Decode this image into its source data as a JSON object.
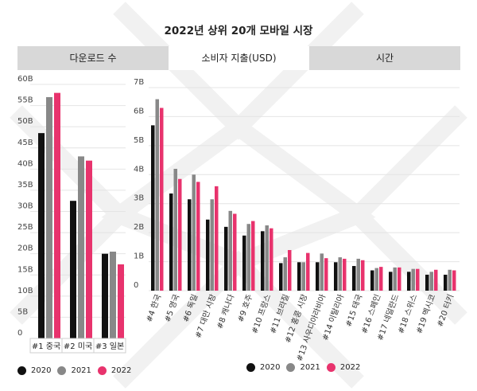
{
  "title": "2022년 상위 20개 모바일 시장",
  "tabs": [
    {
      "label": "다운로드 수",
      "active": false
    },
    {
      "label": "소비자 지출(USD)",
      "active": true
    },
    {
      "label": "시간",
      "active": false
    }
  ],
  "colors": {
    "2020": "#111111",
    "2021": "#888888",
    "2022": "#e8336d"
  },
  "chart_data": [
    {
      "type": "bar",
      "categories": [
        "#1 중국",
        "#2 미국",
        "#3 일본"
      ],
      "ylim": [
        0,
        60
      ],
      "ytick_labels": [
        "0",
        "5B",
        "10B",
        "15B",
        "20B",
        "25B",
        "30B",
        "35B",
        "40B",
        "45B",
        "50B",
        "55B",
        "60B"
      ],
      "series": [
        {
          "name": "2020",
          "values": [
            48.5,
            32.5,
            20
          ]
        },
        {
          "name": "2021",
          "values": [
            57,
            43,
            20.5
          ]
        },
        {
          "name": "2022",
          "values": [
            58,
            42,
            17.5
          ]
        }
      ],
      "grid": true
    },
    {
      "type": "bar",
      "categories": [
        "#4 한국",
        "#5 영국",
        "#6 독일",
        "#7 대만 시장",
        "#8 캐나다",
        "#9 호주",
        "#10 프랑스",
        "#11 브라질",
        "#12 홍콩 시장",
        "#13 사우디아라비아",
        "#14 이탈리아",
        "#15 태국",
        "#16 스페인",
        "#17 네덜란드",
        "#18 스위스",
        "#19 멕시코",
        "#20 터키"
      ],
      "ylim": [
        0,
        7
      ],
      "ytick_labels": [
        "0",
        "1B",
        "2B",
        "3B",
        "4B",
        "5B",
        "6B",
        "7B"
      ],
      "series": [
        {
          "name": "2020",
          "values": [
            5.7,
            3.35,
            3.15,
            2.45,
            2.2,
            1.9,
            2.05,
            0.95,
            0.98,
            0.98,
            0.98,
            0.85,
            0.7,
            0.65,
            0.65,
            0.55,
            0.55
          ]
        },
        {
          "name": "2021",
          "values": [
            6.6,
            4.2,
            4.0,
            3.15,
            2.75,
            2.3,
            2.25,
            1.15,
            0.98,
            1.28,
            1.15,
            1.1,
            0.78,
            0.8,
            0.75,
            0.65,
            0.72
          ]
        },
        {
          "name": "2022",
          "values": [
            6.3,
            3.85,
            3.75,
            3.6,
            2.65,
            2.4,
            2.15,
            1.4,
            1.3,
            1.12,
            1.1,
            1.05,
            0.82,
            0.8,
            0.75,
            0.72,
            0.7
          ]
        }
      ],
      "grid": true
    }
  ],
  "legends": [
    {
      "items": [
        "2020",
        "2021",
        "2022"
      ]
    },
    {
      "items": [
        "2020",
        "2021",
        "2022"
      ]
    }
  ]
}
